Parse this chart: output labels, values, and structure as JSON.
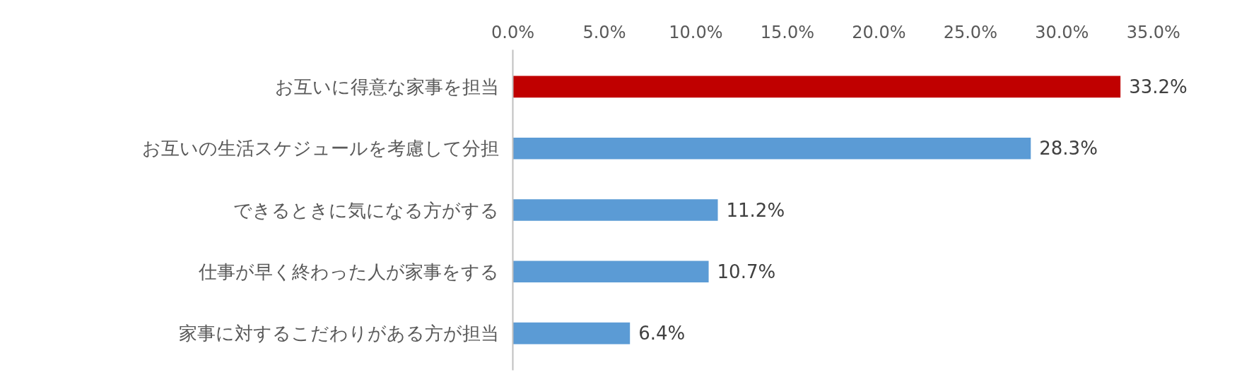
{
  "chart_data": {
    "type": "bar",
    "orientation": "horizontal",
    "categories": [
      "お互いに得意な家事を担当",
      "お互いの生活スケジュールを考慮して分担",
      "できるときに気になる方がする",
      "仕事が早く終わった人が家事をする",
      "家事に対するこだわりがある方が担当"
    ],
    "values": [
      33.2,
      28.3,
      11.2,
      10.7,
      6.4
    ],
    "colors": [
      "#c00000",
      "#5b9bd5",
      "#5b9bd5",
      "#5b9bd5",
      "#5b9bd5"
    ],
    "value_labels": [
      "33.2%",
      "28.3%",
      "11.2%",
      "10.7%",
      "6.4%"
    ],
    "xlim": [
      0,
      35
    ],
    "xticks": [
      {
        "value": 0,
        "label": "0.0%"
      },
      {
        "value": 5,
        "label": "5.0%"
      },
      {
        "value": 10,
        "label": "10.0%"
      },
      {
        "value": 15,
        "label": "15.0%"
      },
      {
        "value": 20,
        "label": "20.0%"
      },
      {
        "value": 25,
        "label": "25.0%"
      },
      {
        "value": 30,
        "label": "30.0%"
      },
      {
        "value": 35,
        "label": "35.0%"
      }
    ],
    "grid": false
  }
}
